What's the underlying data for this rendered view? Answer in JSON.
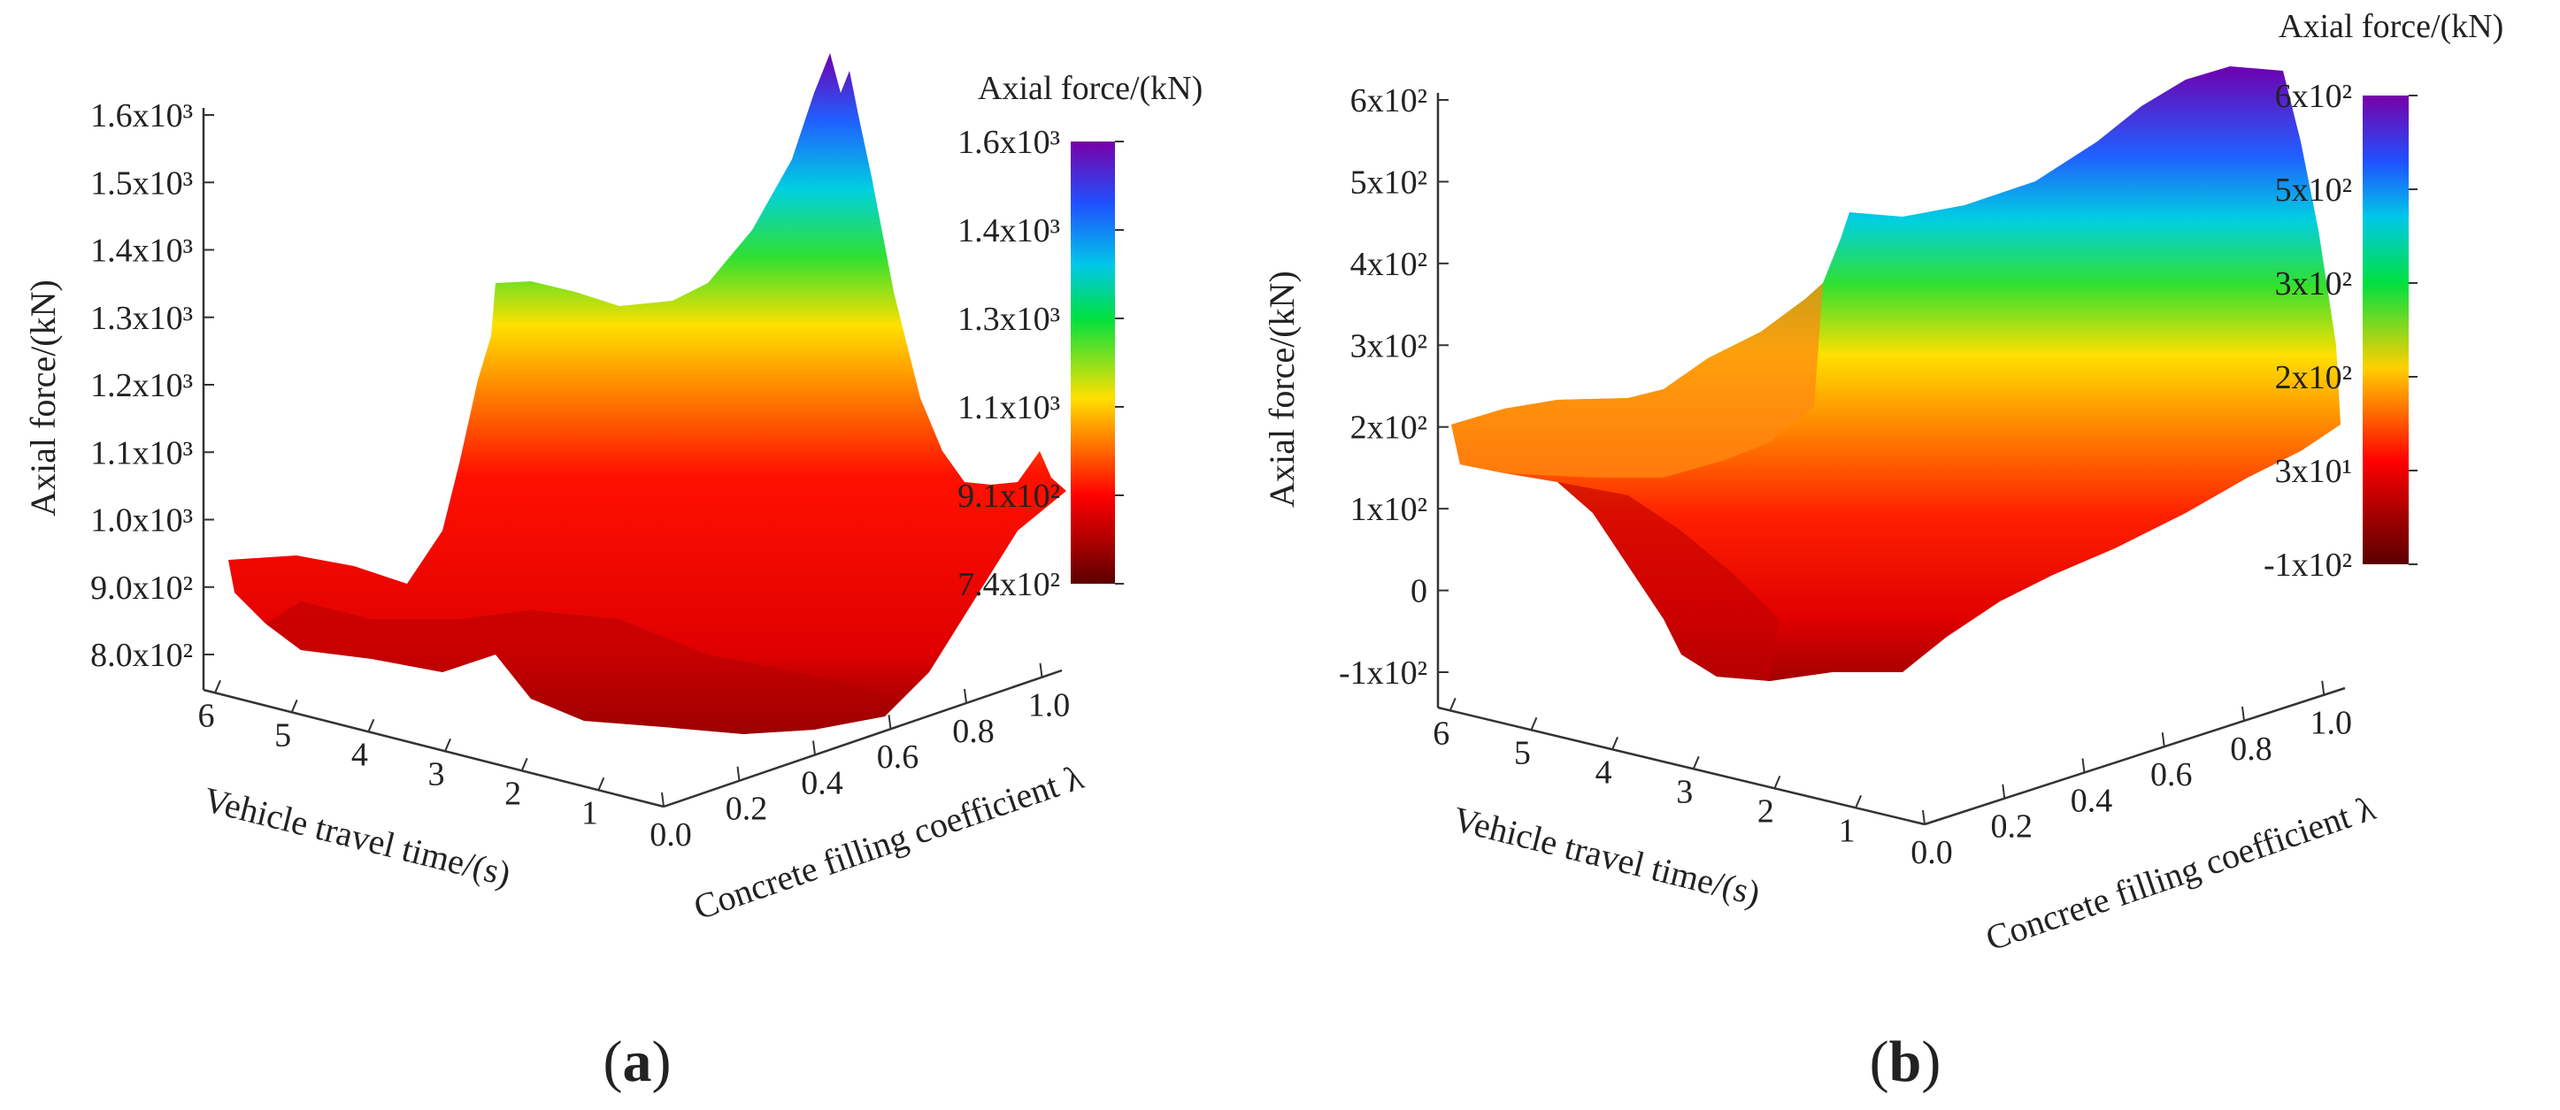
{
  "chart_data": [
    {
      "type": "surface3d",
      "panel_label": "a",
      "zlabel": "Axial force/(kN)",
      "xlabel": "Vehicle travel time/(s)",
      "ylabel": "Concrete filling coefficient λ",
      "x_ticks": [
        "6",
        "5",
        "4",
        "3",
        "2",
        "1"
      ],
      "y_ticks": [
        "0.0",
        "0.2",
        "0.4",
        "0.6",
        "0.8",
        "1.0"
      ],
      "z_ticks": [
        {
          "value": 1600,
          "label": "1.6x10³"
        },
        {
          "value": 1500,
          "label": "1.5x10³"
        },
        {
          "value": 1400,
          "label": "1.4x10³"
        },
        {
          "value": 1300,
          "label": "1.3x10³"
        },
        {
          "value": 1200,
          "label": "1.2x10³"
        },
        {
          "value": 1100,
          "label": "1.1x10³"
        },
        {
          "value": 1000,
          "label": "1.0x10³"
        },
        {
          "value": 900,
          "label": "9.0x10²"
        },
        {
          "value": 800,
          "label": "8.0x10²"
        }
      ],
      "colorbar": {
        "title": "Axial force/(kN)",
        "min": 740,
        "max": 1600,
        "ticks": [
          {
            "value": 1600,
            "label": "1.6x10³"
          },
          {
            "value": 1400,
            "label": "1.4x10³"
          },
          {
            "value": 1300,
            "label": "1.3x10³"
          },
          {
            "value": 1100,
            "label": "1.1x10³"
          },
          {
            "value": 910,
            "label": "9.1x10²"
          },
          {
            "value": 740,
            "label": "7.4x10²"
          }
        ]
      },
      "approx_peaks": [
        {
          "time_s": 3.0,
          "lambda": 0.0,
          "force_kN": 1330
        },
        {
          "time_s": 0.6,
          "lambda": 0.9,
          "force_kN": 1640
        }
      ]
    },
    {
      "type": "surface3d",
      "panel_label": "b",
      "zlabel": "Axial force/(kN)",
      "xlabel": "Vehicle travel time/(s)",
      "ylabel": "Concrete filling coefficient λ",
      "x_ticks": [
        "6",
        "5",
        "4",
        "3",
        "2",
        "1"
      ],
      "y_ticks": [
        "0.0",
        "0.2",
        "0.4",
        "0.6",
        "0.8",
        "1.0"
      ],
      "z_ticks": [
        {
          "value": 600,
          "label": "6x10²"
        },
        {
          "value": 500,
          "label": "5x10²"
        },
        {
          "value": 400,
          "label": "4x10²"
        },
        {
          "value": 300,
          "label": "3x10²"
        },
        {
          "value": 200,
          "label": "2x10²"
        },
        {
          "value": 100,
          "label": "1x10²"
        },
        {
          "value": 0,
          "label": "0"
        },
        {
          "value": -100,
          "label": "-1x10²"
        }
      ],
      "colorbar": {
        "title": "Axial force/(kN)",
        "min": -100,
        "max": 600,
        "ticks": [
          {
            "value": 600,
            "label": "6x10²"
          },
          {
            "value": 500,
            "label": "5x10²"
          },
          {
            "value": 300,
            "label": "3x10²"
          },
          {
            "value": 200,
            "label": "2x10²"
          },
          {
            "value": 30,
            "label": "3x10¹"
          },
          {
            "value": -100,
            "label": "-1x10²"
          }
        ]
      },
      "approx_peaks": [
        {
          "time_s": 2.9,
          "lambda": 0.0,
          "force_kN": 440
        },
        {
          "time_s": 0.6,
          "lambda": 1.0,
          "force_kN": 640
        }
      ]
    }
  ]
}
